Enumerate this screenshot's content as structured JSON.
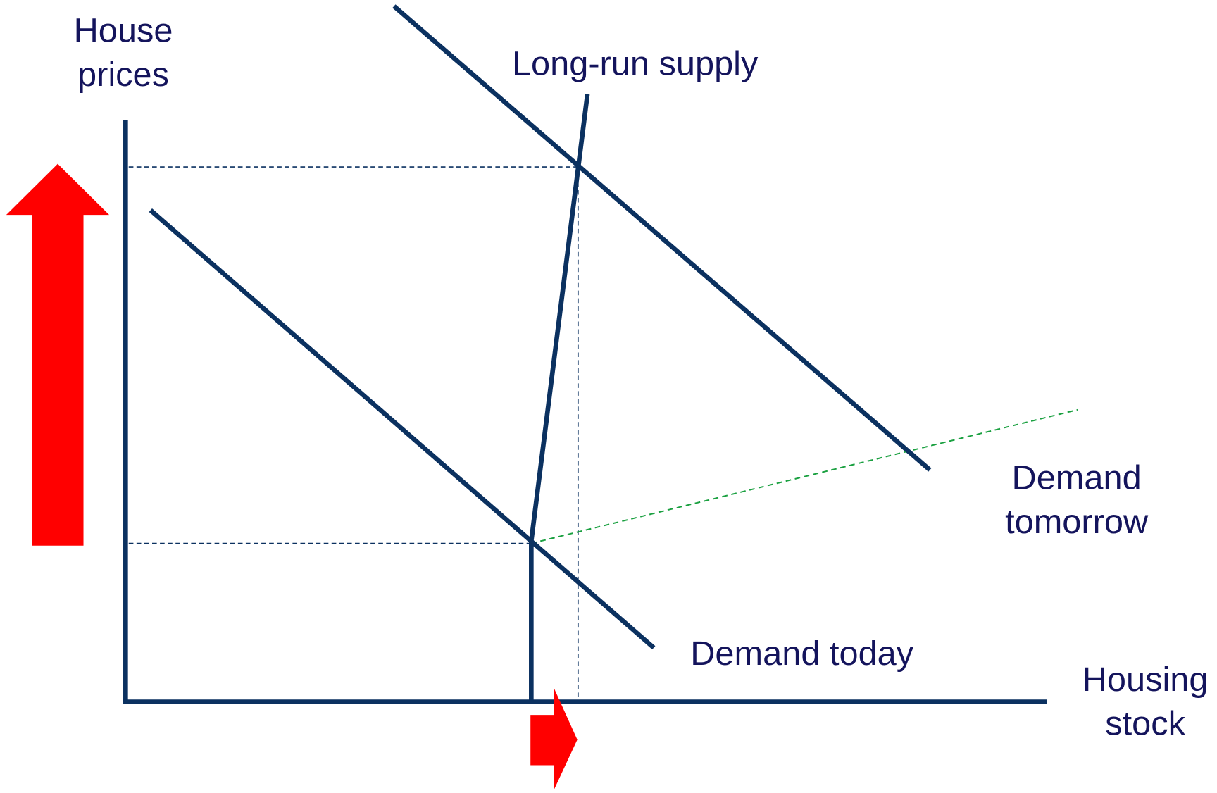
{
  "axes": {
    "y_label": [
      "House",
      "prices"
    ],
    "x_label": [
      "Housing",
      "stock"
    ]
  },
  "curves": [
    {
      "label": [
        "Long-run supply"
      ]
    },
    {
      "label": [
        "Demand",
        "tomorrow"
      ]
    },
    {
      "label": [
        "Demand today"
      ]
    }
  ]
}
